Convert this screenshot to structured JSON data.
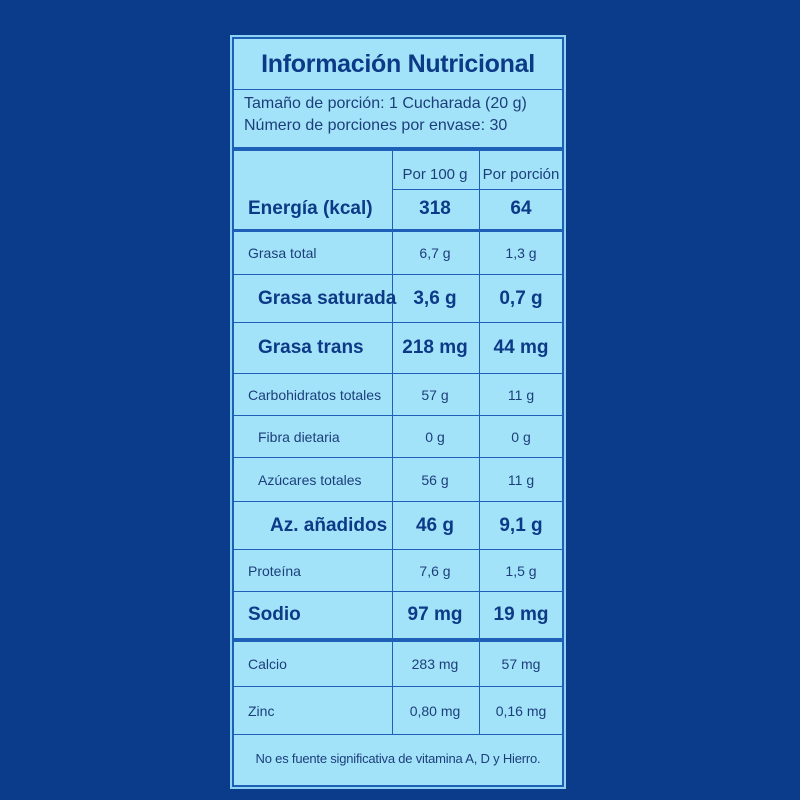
{
  "label": {
    "title": "Información Nutricional",
    "serving_size": "Tamaño de porción: 1 Cucharada (20 g)",
    "servings_per_container": "Número de porciones por envase: 30",
    "columns": {
      "per_100g": "Por 100 g",
      "per_portion": "Por porción"
    },
    "rows": [
      {
        "name": "Energía (kcal)",
        "per_100g": "318",
        "per_portion": "64"
      },
      {
        "name": "Grasa total",
        "per_100g": "6,7 g",
        "per_portion": "1,3 g"
      },
      {
        "name": "Grasa saturada",
        "per_100g": "3,6 g",
        "per_portion": "0,7 g"
      },
      {
        "name": "Grasa trans",
        "per_100g": "218 mg",
        "per_portion": "44 mg"
      },
      {
        "name": "Carbohidratos totales",
        "per_100g": "57 g",
        "per_portion": "11 g"
      },
      {
        "name": "Fibra dietaria",
        "per_100g": "0 g",
        "per_portion": "0 g"
      },
      {
        "name": "Azúcares totales",
        "per_100g": "56 g",
        "per_portion": "11 g"
      },
      {
        "name": "Az. añadidos",
        "per_100g": "46 g",
        "per_portion": "9,1 g"
      },
      {
        "name": "Proteína",
        "per_100g": "7,6 g",
        "per_portion": "1,5 g"
      },
      {
        "name": "Sodio",
        "per_100g": "97 mg",
        "per_portion": "19 mg"
      },
      {
        "name": "Calcio",
        "per_100g": "283 mg",
        "per_portion": "57 mg"
      },
      {
        "name": "Zinc",
        "per_100g": "0,80 mg",
        "per_portion": "0,16 mg"
      }
    ],
    "footnote": "No es fuente significativa de vitamina A, D y Hierro."
  }
}
